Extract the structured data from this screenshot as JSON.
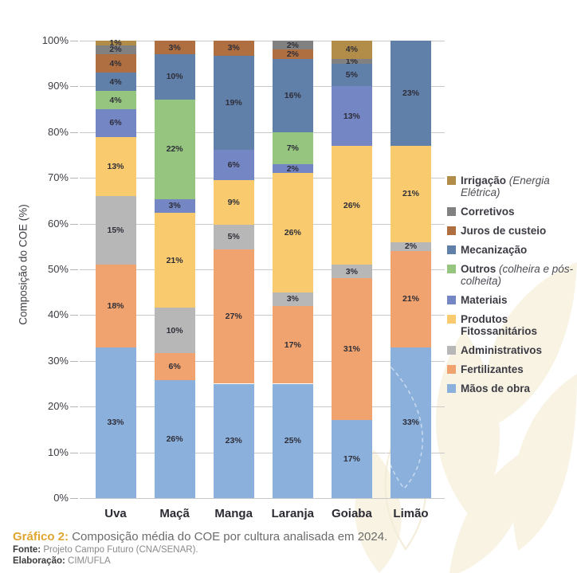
{
  "chart_data": {
    "type": "bar",
    "stacked": true,
    "title": "",
    "xlabel": "",
    "ylabel": "Composição do COE (%)",
    "ylim": [
      0,
      100
    ],
    "yticks": [
      0,
      10,
      20,
      30,
      40,
      50,
      60,
      70,
      80,
      90,
      100
    ],
    "ytick_suffix": "%",
    "value_suffix": "%",
    "grid": true,
    "legend_position": "right",
    "categories": [
      "Uva",
      "Maçã",
      "Manga",
      "Laranja",
      "Goiaba",
      "Limão"
    ],
    "stack_order": "bottom_to_top",
    "series": [
      {
        "name": "Mãos de obra",
        "color": "#8BB0DC",
        "values": [
          33,
          26,
          23,
          25,
          17,
          33
        ]
      },
      {
        "name": "Fertilizantes",
        "color": "#F0A36E",
        "values": [
          18,
          6,
          27,
          17,
          31,
          21
        ]
      },
      {
        "name": "Administrativos",
        "color": "#B7B7B7",
        "values": [
          15,
          10,
          5,
          3,
          3,
          2
        ]
      },
      {
        "name": "Produtos Fitossanitários",
        "color": "#FACB6E",
        "values": [
          13,
          21,
          9,
          26,
          26,
          21
        ]
      },
      {
        "name": "Materiais",
        "color": "#7486C4",
        "values": [
          6,
          3,
          6,
          2,
          13,
          0
        ]
      },
      {
        "name": "Outros (colheira e pós-colheita)",
        "color": "#95C57F",
        "values": [
          4,
          22,
          0,
          7,
          0,
          0
        ]
      },
      {
        "name": "Mecanização",
        "color": "#607FA9",
        "values": [
          4,
          10,
          19,
          16,
          5,
          23
        ]
      },
      {
        "name": "Juros de custeio",
        "color": "#B06F41",
        "values": [
          4,
          3,
          3,
          2,
          0,
          0
        ]
      },
      {
        "name": "Corretivos",
        "color": "#818181",
        "values": [
          2,
          0,
          0,
          2,
          1,
          0
        ]
      },
      {
        "name": "Irrigação (Energia Elétrica)",
        "color": "#B28D4A",
        "values": [
          1,
          0,
          0,
          0,
          4,
          0
        ]
      }
    ]
  },
  "legend": {
    "items": [
      {
        "label": "Irrigação",
        "note": "(Energia Elétrica)",
        "color": "#B28D4A"
      },
      {
        "label": "Corretivos",
        "note": "",
        "color": "#818181"
      },
      {
        "label": "Juros de custeio",
        "note": "",
        "color": "#B06F41"
      },
      {
        "label": "Mecanização",
        "note": "",
        "color": "#607FA9"
      },
      {
        "label": "Outros",
        "note": "(colheira e pós-colheita)",
        "color": "#95C57F"
      },
      {
        "label": "Materiais",
        "note": "",
        "color": "#7486C4"
      },
      {
        "label": "Produtos Fitossanitários",
        "note": "",
        "color": "#FACB6E"
      },
      {
        "label": "Administrativos",
        "note": "",
        "color": "#B7B7B7"
      },
      {
        "label": "Fertilizantes",
        "note": "",
        "color": "#F0A36E"
      },
      {
        "label": "Mãos de obra",
        "note": "",
        "color": "#8BB0DC"
      }
    ]
  },
  "caption": {
    "title_label": "Gráfico 2:",
    "title_text": " Composição média do COE por cultura analisada em 2024.",
    "source_label": "Fonte:",
    "source_text": " Projeto Campo Futuro (CNA/SENAR).",
    "elaboration_label": "Elaboração:",
    "elaboration_text": " CIM/UFLA"
  },
  "colors": {
    "caption_accent": "#DFA52F",
    "grid": "#C9C9C9",
    "segment_label": "#2E2E38",
    "watermark": "#F8F3E3"
  }
}
